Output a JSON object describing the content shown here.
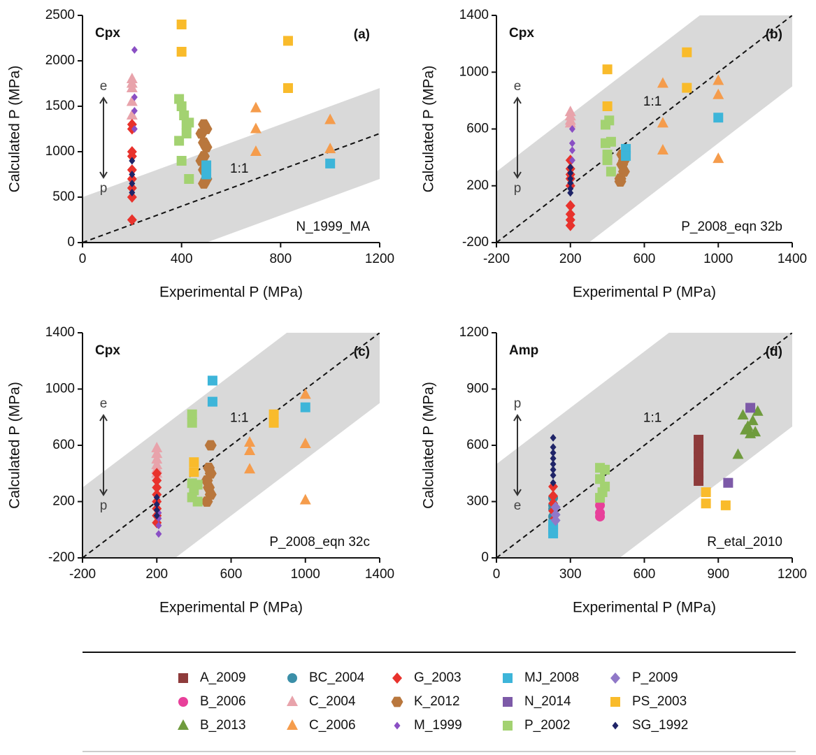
{
  "chart_data": [
    {
      "type": "scatter",
      "xlabel": "Experimental P (MPa)",
      "ylabel": "Calculated P (MPa)",
      "panel_label": "(a)",
      "mineral": "Cpx",
      "model": "N_1999_MA",
      "one_to_one": "1:1",
      "arrow_top": "e",
      "arrow_bottom": "p",
      "error_band": 500,
      "xlim": [
        0,
        1200
      ],
      "xticks": [
        0,
        400,
        800,
        1200
      ],
      "ylim": [
        0,
        2500
      ],
      "yticks": [
        0,
        500,
        1000,
        1500,
        2000,
        2500
      ],
      "series": [
        {
          "name": "C_2004",
          "color": "#e8a3ab",
          "marker": "triangle",
          "x": [
            200,
            200,
            200,
            200,
            200
          ],
          "values": [
            1800,
            1750,
            1550,
            1400,
            1700
          ]
        },
        {
          "name": "C_2006",
          "color": "#f59c4c",
          "marker": "triangle",
          "x": [
            700,
            700,
            700,
            1000,
            1000
          ],
          "values": [
            1480,
            1250,
            1000,
            1350,
            1030
          ]
        },
        {
          "name": "G_2003",
          "color": "#e8322c",
          "marker": "diamond",
          "x": [
            200,
            200,
            200,
            200,
            200,
            200,
            200,
            200,
            200
          ],
          "values": [
            250,
            500,
            600,
            700,
            800,
            950,
            1000,
            1250,
            1300
          ]
        },
        {
          "name": "K_2012",
          "color": "#b9773d",
          "marker": "hexagon",
          "x": [
            490,
            500,
            480,
            490,
            500,
            490,
            480,
            490,
            500,
            490
          ],
          "values": [
            1300,
            1250,
            1200,
            1100,
            1050,
            950,
            900,
            800,
            700,
            650
          ]
        },
        {
          "name": "M_1999",
          "color": "#8a4fc4",
          "marker": "small-diamond",
          "x": [
            210,
            210,
            210,
            210
          ],
          "values": [
            2120,
            1450,
            1250,
            1600
          ]
        },
        {
          "name": "MJ_2008",
          "color": "#3db5d9",
          "marker": "square",
          "x": [
            500,
            500,
            1000
          ],
          "values": [
            850,
            750,
            870
          ]
        },
        {
          "name": "P_2002",
          "color": "#a3d271",
          "marker": "square",
          "x": [
            390,
            400,
            410,
            420,
            430,
            390,
            400,
            420,
            430
          ],
          "values": [
            1580,
            1500,
            1400,
            1300,
            1320,
            1120,
            900,
            1200,
            700
          ]
        },
        {
          "name": "PS_2003",
          "color": "#f9bb2b",
          "marker": "square",
          "x": [
            400,
            400,
            830,
            830
          ],
          "values": [
            2400,
            2100,
            2220,
            1700
          ]
        },
        {
          "name": "SG_1992",
          "color": "#1f2468",
          "marker": "small-diamond",
          "x": [
            200,
            200,
            200,
            200
          ],
          "values": [
            550,
            650,
            750,
            900
          ]
        }
      ]
    },
    {
      "type": "scatter",
      "xlabel": "Experimental P (MPa)",
      "ylabel": "Calculated P (MPa)",
      "panel_label": "(b)",
      "mineral": "Cpx",
      "model": "P_2008_eqn 32b",
      "one_to_one": "1:1",
      "arrow_top": "e",
      "arrow_bottom": "p",
      "error_band": 500,
      "xlim": [
        -200,
        1400
      ],
      "xticks": [
        -200,
        200,
        600,
        1000,
        1400
      ],
      "ylim": [
        -200,
        1400
      ],
      "yticks": [
        -200,
        200,
        600,
        1000,
        1400
      ],
      "series": [
        {
          "name": "C_2004",
          "color": "#e8a3ab",
          "marker": "triangle",
          "x": [
            200,
            200,
            200,
            200
          ],
          "values": [
            720,
            690,
            660,
            640
          ]
        },
        {
          "name": "C_2006",
          "color": "#f59c4c",
          "marker": "triangle",
          "x": [
            700,
            700,
            700,
            1000,
            1000,
            1000
          ],
          "values": [
            920,
            640,
            450,
            940,
            840,
            390
          ]
        },
        {
          "name": "G_2003",
          "color": "#e8322c",
          "marker": "diamond",
          "x": [
            200,
            200,
            200,
            200,
            200,
            200,
            200,
            200,
            200
          ],
          "values": [
            380,
            320,
            280,
            250,
            200,
            60,
            0,
            -40,
            -80
          ]
        },
        {
          "name": "K_2012",
          "color": "#b9773d",
          "marker": "hexagon",
          "x": [
            480,
            490,
            470,
            480,
            490,
            470
          ],
          "values": [
            350,
            300,
            250,
            420,
            380,
            230
          ]
        },
        {
          "name": "M_1999",
          "color": "#8a4fc4",
          "marker": "small-diamond",
          "x": [
            210,
            210,
            210,
            210
          ],
          "values": [
            600,
            500,
            450,
            380
          ]
        },
        {
          "name": "MJ_2008",
          "color": "#3db5d9",
          "marker": "square",
          "x": [
            500,
            500,
            1000
          ],
          "values": [
            460,
            410,
            680
          ]
        },
        {
          "name": "P_2002",
          "color": "#a3d271",
          "marker": "square",
          "x": [
            390,
            410,
            390,
            420,
            400,
            420,
            400
          ],
          "values": [
            630,
            660,
            500,
            510,
            380,
            300,
            420
          ]
        },
        {
          "name": "PS_2003",
          "color": "#f9bb2b",
          "marker": "square",
          "x": [
            400,
            400,
            830,
            830
          ],
          "values": [
            1020,
            760,
            1140,
            890
          ]
        },
        {
          "name": "SG_1992",
          "color": "#1f2468",
          "marker": "small-diamond",
          "x": [
            200,
            200,
            200,
            200,
            200,
            200
          ],
          "values": [
            330,
            290,
            250,
            220,
            180,
            150
          ]
        }
      ]
    },
    {
      "type": "scatter",
      "xlabel": "Experimental P (MPa)",
      "ylabel": "Calculated P (MPa)",
      "panel_label": "(c)",
      "mineral": "Cpx",
      "model": "P_2008_eqn 32c",
      "one_to_one": "1:1",
      "arrow_top": "e",
      "arrow_bottom": "p",
      "error_band": 500,
      "xlim": [
        -200,
        1400
      ],
      "xticks": [
        -200,
        200,
        600,
        1000,
        1400
      ],
      "ylim": [
        -200,
        1400
      ],
      "yticks": [
        -200,
        200,
        600,
        1000,
        1400
      ],
      "series": [
        {
          "name": "C_2004",
          "color": "#e8a3ab",
          "marker": "triangle",
          "x": [
            200,
            200,
            200,
            200,
            200,
            200
          ],
          "values": [
            580,
            540,
            500,
            460,
            430,
            400
          ]
        },
        {
          "name": "C_2006",
          "color": "#f59c4c",
          "marker": "triangle",
          "x": [
            700,
            700,
            700,
            1000,
            1000,
            1000
          ],
          "values": [
            620,
            560,
            430,
            960,
            610,
            210
          ]
        },
        {
          "name": "G_2003",
          "color": "#e8322c",
          "marker": "diamond",
          "x": [
            200,
            200,
            200,
            200,
            200,
            200,
            200,
            200
          ],
          "values": [
            400,
            350,
            300,
            250,
            200,
            150,
            100,
            50
          ]
        },
        {
          "name": "K_2012",
          "color": "#b9773d",
          "marker": "hexagon",
          "x": [
            490,
            480,
            490,
            470,
            480,
            490,
            470
          ],
          "values": [
            600,
            440,
            400,
            350,
            300,
            250,
            200
          ]
        },
        {
          "name": "M_1999",
          "color": "#8a4fc4",
          "marker": "small-diamond",
          "x": [
            210,
            210,
            210,
            210
          ],
          "values": [
            80,
            30,
            -30,
            120
          ]
        },
        {
          "name": "MJ_2008",
          "color": "#3db5d9",
          "marker": "square",
          "x": [
            500,
            500,
            1000
          ],
          "values": [
            1060,
            910,
            870
          ]
        },
        {
          "name": "P_2002",
          "color": "#a3d271",
          "marker": "square",
          "x": [
            390,
            390,
            390,
            400,
            390,
            420,
            420
          ],
          "values": [
            820,
            760,
            330,
            280,
            230,
            200,
            320
          ]
        },
        {
          "name": "PS_2003",
          "color": "#f9bb2b",
          "marker": "square",
          "x": [
            400,
            400,
            830,
            830
          ],
          "values": [
            480,
            410,
            820,
            760
          ]
        },
        {
          "name": "SG_1992",
          "color": "#1f2468",
          "marker": "small-diamond",
          "x": [
            200,
            200,
            200,
            200
          ],
          "values": [
            230,
            180,
            140,
            100
          ]
        }
      ]
    },
    {
      "type": "scatter",
      "xlabel": "Experimental P (MPa)",
      "ylabel": "Calculated P (MPa)",
      "panel_label": "(d)",
      "mineral": "Amp",
      "model": "R_etal_2010",
      "one_to_one": "1:1",
      "arrow_top": "p",
      "arrow_bottom": "e",
      "error_band": 500,
      "xlim": [
        0,
        1200
      ],
      "xticks": [
        0,
        300,
        600,
        900,
        1200
      ],
      "ylim": [
        0,
        1200
      ],
      "yticks": [
        0,
        300,
        600,
        900,
        1200
      ],
      "series": [
        {
          "name": "A_2009",
          "color": "#8e3b3b",
          "marker": "square",
          "x": [
            820,
            820,
            820,
            820,
            820,
            820
          ],
          "values": [
            630,
            580,
            540,
            500,
            450,
            410
          ]
        },
        {
          "name": "B_2006",
          "color": "#e8409a",
          "marker": "circle",
          "x": [
            420,
            420,
            420,
            420
          ],
          "values": [
            310,
            280,
            240,
            220
          ]
        },
        {
          "name": "B_2013",
          "color": "#6f9b3d",
          "marker": "triangle",
          "x": [
            980,
            1000,
            1020,
            1040,
            1060,
            1010,
            1050,
            1030
          ],
          "values": [
            550,
            760,
            700,
            730,
            780,
            680,
            670,
            660
          ]
        },
        {
          "name": "BC_2004",
          "color": "#3b8fa8",
          "marker": "circle",
          "x": [
            230,
            230,
            230,
            230
          ],
          "values": [
            320,
            280,
            260,
            220
          ]
        },
        {
          "name": "G_2003",
          "color": "#e8322c",
          "marker": "diamond",
          "x": [
            230,
            230,
            230,
            230,
            230,
            230
          ],
          "values": [
            380,
            330,
            290,
            250,
            200,
            160
          ]
        },
        {
          "name": "MJ_2008",
          "color": "#3db5d9",
          "marker": "square",
          "x": [
            230,
            230,
            230
          ],
          "values": [
            180,
            150,
            130
          ]
        },
        {
          "name": "N_2014",
          "color": "#7d5aa8",
          "marker": "square",
          "x": [
            1030,
            940
          ],
          "values": [
            800,
            400
          ]
        },
        {
          "name": "P_2002",
          "color": "#a3d271",
          "marker": "square",
          "x": [
            420,
            440,
            420,
            440,
            430,
            420
          ],
          "values": [
            480,
            470,
            420,
            380,
            350,
            320
          ]
        },
        {
          "name": "P_2009",
          "color": "#9078c8",
          "marker": "diamond",
          "x": [
            240,
            240,
            240
          ],
          "values": [
            270,
            230,
            200
          ]
        },
        {
          "name": "PS_2003",
          "color": "#f9bb2b",
          "marker": "square",
          "x": [
            850,
            850,
            930
          ],
          "values": [
            350,
            290,
            280
          ]
        },
        {
          "name": "SG_1992",
          "color": "#1f2468",
          "marker": "small-diamond",
          "x": [
            230,
            230,
            230,
            230,
            230,
            230,
            230,
            230
          ],
          "values": [
            640,
            590,
            560,
            530,
            500,
            470,
            440,
            400
          ]
        }
      ]
    }
  ]
}
